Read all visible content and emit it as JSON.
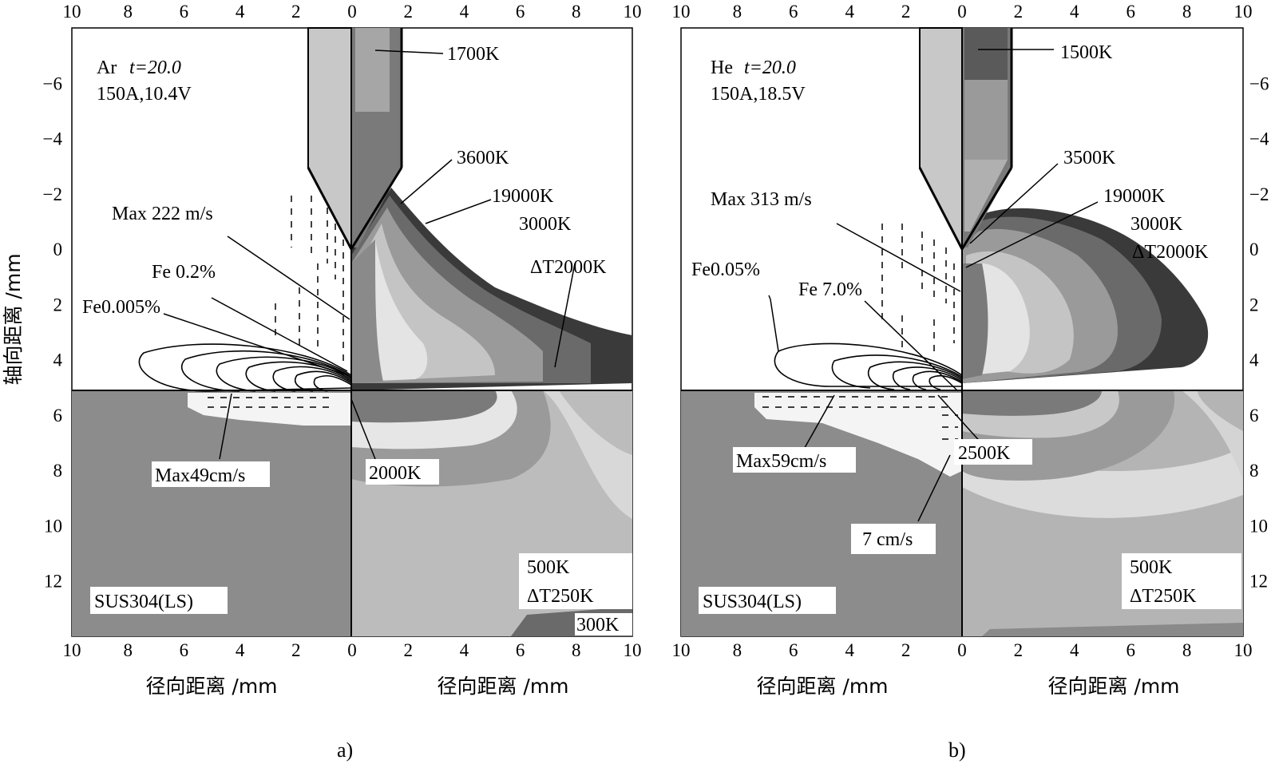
{
  "figure": {
    "caption_a": "a)",
    "caption_b": "b)",
    "y_axis_label": "轴向距离 /mm",
    "x_axis_label": "径向距离 /mm",
    "x_ticks": [
      "10",
      "8",
      "6",
      "4",
      "2",
      "0",
      "2",
      "4",
      "6",
      "8",
      "10"
    ],
    "y_ticks": [
      "−6",
      "−4",
      "−2",
      "0",
      "2",
      "4",
      "6",
      "8",
      "10",
      "12"
    ]
  },
  "panel_a": {
    "gas_label": "Ar",
    "time_label": "t=20.0",
    "current_voltage": "150A,10.4V",
    "temp_top": "1700K",
    "temp_tip": "3600K",
    "temp_max": "19000K",
    "temp_min": "3000K",
    "temp_step": "ΔT2000K",
    "max_velocity_arc": "Max 222 m/s",
    "fe_inner": "Fe 0.2%",
    "fe_outer": "Fe0.005%",
    "max_velocity_pool": "Max49cm/s",
    "pool_temp": "2000K",
    "material": "SUS304(LS)",
    "base_temp": "500K",
    "base_step": "ΔT250K",
    "ambient_temp": "300K",
    "colors": {
      "pool_grey": "#8c8c8c",
      "electrode": "#c8c8c8"
    }
  },
  "panel_b": {
    "gas_label": "He",
    "time_label": "t=20.0",
    "current_voltage": "150A,18.5V",
    "temp_top": "1500K",
    "temp_tip": "3500K",
    "temp_max": "19000K",
    "temp_min": "3000K",
    "temp_step": "ΔT2000K",
    "max_velocity_arc": "Max 313 m/s",
    "fe_outer": "Fe0.05%",
    "fe_inner": "Fe 7.0%",
    "pool_temp": "2500K",
    "max_velocity_pool": "Max59cm/s",
    "edge_velocity": "7 cm/s",
    "material": "SUS304(LS)",
    "base_temp": "500K",
    "base_step": "ΔT250K",
    "colors": {
      "pool_grey": "#8c8c8c",
      "electrode": "#c8c8c8"
    }
  }
}
